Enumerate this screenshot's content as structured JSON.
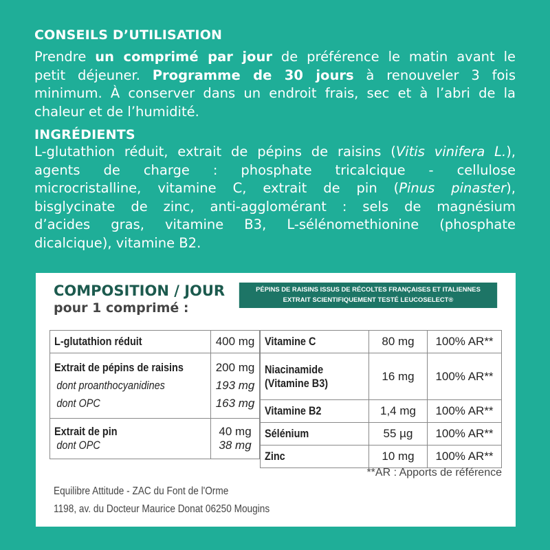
{
  "usage": {
    "title": "CONSEILS D’UTILISATION",
    "lines": [
      [
        {
          "t": "Prendre "
        },
        {
          "t": "un comprimé par jour",
          "b": true
        },
        {
          "t": " de préférence le matin avant le"
        }
      ],
      [
        {
          "t": "petit déjeuner. "
        },
        {
          "t": "Programme de 30 jours",
          "b": true
        },
        {
          "t": " à renouveler 3 fois"
        }
      ],
      [
        {
          "t": "minimum. À conserver dans un endroit frais, sec et à l’abri de la"
        }
      ],
      [
        {
          "t": "chaleur et de l’humidité."
        }
      ]
    ]
  },
  "ingredients": {
    "title": "INGRÉDIENTS",
    "lines": [
      [
        {
          "t": "L-glutathion réduit, extrait  de pépins de raisins ("
        },
        {
          "t": "Vitis vinifera L.",
          "i": true
        },
        {
          "t": "),"
        }
      ],
      [
        {
          "t": "agents de charge : phosphate tricalcique - cellulose"
        }
      ],
      [
        {
          "t": "microcristalline, vitamine C,  extrait de pin ("
        },
        {
          "t": "Pinus pinaster",
          "i": true
        },
        {
          "t": "),"
        }
      ],
      [
        {
          "t": "bisglycinate de zinc, anti-agglomérant : sels de magnésium"
        }
      ],
      [
        {
          "t": "d’acides gras, vitamine B3, L-sélénomethionine (phosphate"
        }
      ],
      [
        {
          "t": "dicalcique), vitamine B2."
        }
      ]
    ]
  },
  "composition": {
    "title": "COMPOSITION / JOUR",
    "subtitle": "pour 1 comprimé :",
    "banner_line1": "PÉPINS DE RAISINS ISSUS DE RÉCOLTES FRANÇAISES ET ITALIENNES",
    "banner_line2": "EXTRAIT SCIENTIFIQUEMENT TESTÉ LEUCOSELECT®",
    "left": [
      {
        "name": "L-glutathion réduit",
        "qty": "400 mg"
      },
      {
        "name": "Extrait de pépins de raisins",
        "qty": "200 mg",
        "subs": [
          {
            "name": "dont proanthocyanidines",
            "qty": "193 mg"
          },
          {
            "name": "dont OPC",
            "qty": "163 mg"
          }
        ]
      },
      {
        "name": "Extrait de pin",
        "qty": "40 mg",
        "subs": [
          {
            "name": "dont OPC",
            "qty": "38 mg"
          }
        ]
      }
    ],
    "right": [
      {
        "name": "Vitamine C",
        "qty": "80 mg",
        "ar": "100% AR**"
      },
      {
        "name": "Niacinamide",
        "name2": "(Vitamine B3)",
        "qty": "16 mg",
        "ar": "100% AR**"
      },
      {
        "name": "Vitamine B2",
        "qty": "1,4 mg",
        "ar": "100% AR**"
      },
      {
        "name": "Sélénium",
        "qty": "55 µg",
        "ar": "100% AR**"
      },
      {
        "name": "Zinc",
        "qty": "10 mg",
        "ar": "100% AR**"
      }
    ],
    "footnote": "**AR : Apports de référence",
    "address1": "Equilibre Attitude - ZAC du Font de l'Orme",
    "address2": "1198, av. du Docteur Maurice Donat 06250 Mougins"
  }
}
